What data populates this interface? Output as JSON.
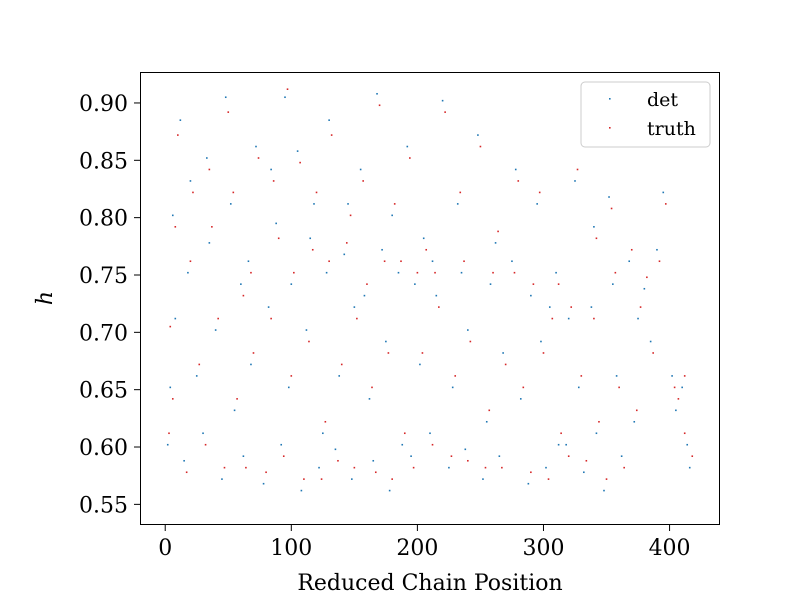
{
  "chart_data": {
    "type": "scatter",
    "title": "",
    "xlabel": "Reduced Chain Position",
    "ylabel": "h",
    "xlim": [
      -20,
      440
    ],
    "ylim": [
      0.532,
      0.927
    ],
    "xticks": [
      0,
      100,
      200,
      300,
      400
    ],
    "yticks": [
      0.55,
      0.6,
      0.65,
      0.7,
      0.75,
      0.8,
      0.85,
      0.9
    ],
    "xtick_labels": [
      "0",
      "100",
      "200",
      "300",
      "400"
    ],
    "ytick_labels": [
      "0.55",
      "0.60",
      "0.65",
      "0.70",
      "0.75",
      "0.80",
      "0.85",
      "0.90"
    ],
    "grid": false,
    "legend_position": "upper right",
    "series": [
      {
        "name": "det",
        "color": "#1f77b4",
        "points": [
          [
            12,
            0.885
          ],
          [
            20,
            0.832
          ],
          [
            35,
            0.778
          ],
          [
            48,
            0.905
          ],
          [
            60,
            0.742
          ],
          [
            72,
            0.862
          ],
          [
            88,
            0.795
          ],
          [
            95,
            0.905
          ],
          [
            105,
            0.858
          ],
          [
            118,
            0.812
          ],
          [
            130,
            0.885
          ],
          [
            142,
            0.768
          ],
          [
            155,
            0.842
          ],
          [
            168,
            0.908
          ],
          [
            180,
            0.802
          ],
          [
            192,
            0.862
          ],
          [
            205,
            0.782
          ],
          [
            220,
            0.902
          ],
          [
            232,
            0.812
          ],
          [
            248,
            0.872
          ],
          [
            262,
            0.778
          ],
          [
            278,
            0.842
          ],
          [
            295,
            0.812
          ],
          [
            310,
            0.752
          ],
          [
            325,
            0.832
          ],
          [
            340,
            0.792
          ],
          [
            352,
            0.818
          ],
          [
            368,
            0.762
          ],
          [
            380,
            0.738
          ],
          [
            395,
            0.822
          ],
          [
            8,
            0.712
          ],
          [
            25,
            0.662
          ],
          [
            40,
            0.702
          ],
          [
            55,
            0.632
          ],
          [
            68,
            0.672
          ],
          [
            82,
            0.722
          ],
          [
            98,
            0.652
          ],
          [
            112,
            0.702
          ],
          [
            125,
            0.612
          ],
          [
            138,
            0.662
          ],
          [
            150,
            0.722
          ],
          [
            162,
            0.642
          ],
          [
            175,
            0.692
          ],
          [
            188,
            0.602
          ],
          [
            202,
            0.672
          ],
          [
            215,
            0.732
          ],
          [
            228,
            0.652
          ],
          [
            240,
            0.702
          ],
          [
            255,
            0.622
          ],
          [
            268,
            0.682
          ],
          [
            282,
            0.642
          ],
          [
            298,
            0.692
          ],
          [
            312,
            0.602
          ],
          [
            328,
            0.652
          ],
          [
            342,
            0.612
          ],
          [
            358,
            0.662
          ],
          [
            372,
            0.622
          ],
          [
            385,
            0.692
          ],
          [
            405,
            0.632
          ],
          [
            414,
            0.602
          ],
          [
            15,
            0.588
          ],
          [
            30,
            0.612
          ],
          [
            45,
            0.572
          ],
          [
            62,
            0.592
          ],
          [
            78,
            0.568
          ],
          [
            92,
            0.602
          ],
          [
            108,
            0.562
          ],
          [
            122,
            0.582
          ],
          [
            135,
            0.598
          ],
          [
            148,
            0.572
          ],
          [
            165,
            0.588
          ],
          [
            178,
            0.562
          ],
          [
            195,
            0.592
          ],
          [
            210,
            0.612
          ],
          [
            225,
            0.582
          ],
          [
            238,
            0.598
          ],
          [
            252,
            0.572
          ],
          [
            265,
            0.592
          ],
          [
            288,
            0.568
          ],
          [
            302,
            0.582
          ],
          [
            318,
            0.602
          ],
          [
            332,
            0.578
          ],
          [
            348,
            0.562
          ],
          [
            362,
            0.592
          ],
          [
            6,
            0.802
          ],
          [
            18,
            0.752
          ],
          [
            33,
            0.852
          ],
          [
            52,
            0.812
          ],
          [
            66,
            0.762
          ],
          [
            84,
            0.842
          ],
          [
            100,
            0.742
          ],
          [
            115,
            0.782
          ],
          [
            128,
            0.752
          ],
          [
            145,
            0.812
          ],
          [
            158,
            0.732
          ],
          [
            172,
            0.772
          ],
          [
            185,
            0.752
          ],
          [
            198,
            0.742
          ],
          [
            212,
            0.762
          ],
          [
            235,
            0.752
          ],
          [
            258,
            0.742
          ],
          [
            275,
            0.762
          ],
          [
            290,
            0.732
          ],
          [
            305,
            0.722
          ],
          [
            320,
            0.712
          ],
          [
            338,
            0.722
          ],
          [
            355,
            0.742
          ],
          [
            375,
            0.712
          ],
          [
            390,
            0.772
          ],
          [
            402,
            0.662
          ],
          [
            410,
            0.652
          ],
          [
            416,
            0.582
          ],
          [
            2,
            0.602
          ],
          [
            4,
            0.652
          ]
        ]
      },
      {
        "name": "truth",
        "color": "#d62728",
        "points": [
          [
            10,
            0.872
          ],
          [
            22,
            0.822
          ],
          [
            37,
            0.792
          ],
          [
            50,
            0.892
          ],
          [
            62,
            0.732
          ],
          [
            74,
            0.852
          ],
          [
            90,
            0.782
          ],
          [
            97,
            0.912
          ],
          [
            107,
            0.848
          ],
          [
            120,
            0.822
          ],
          [
            132,
            0.872
          ],
          [
            144,
            0.778
          ],
          [
            157,
            0.832
          ],
          [
            170,
            0.898
          ],
          [
            182,
            0.812
          ],
          [
            194,
            0.852
          ],
          [
            207,
            0.772
          ],
          [
            222,
            0.892
          ],
          [
            234,
            0.822
          ],
          [
            250,
            0.862
          ],
          [
            264,
            0.788
          ],
          [
            280,
            0.832
          ],
          [
            297,
            0.822
          ],
          [
            312,
            0.742
          ],
          [
            327,
            0.842
          ],
          [
            342,
            0.782
          ],
          [
            354,
            0.808
          ],
          [
            370,
            0.772
          ],
          [
            382,
            0.748
          ],
          [
            397,
            0.812
          ],
          [
            4,
            0.705
          ],
          [
            27,
            0.672
          ],
          [
            42,
            0.712
          ],
          [
            57,
            0.642
          ],
          [
            70,
            0.682
          ],
          [
            84,
            0.712
          ],
          [
            100,
            0.662
          ],
          [
            114,
            0.692
          ],
          [
            127,
            0.622
          ],
          [
            140,
            0.672
          ],
          [
            152,
            0.712
          ],
          [
            164,
            0.652
          ],
          [
            177,
            0.682
          ],
          [
            190,
            0.612
          ],
          [
            204,
            0.682
          ],
          [
            217,
            0.722
          ],
          [
            230,
            0.662
          ],
          [
            242,
            0.692
          ],
          [
            257,
            0.632
          ],
          [
            270,
            0.672
          ],
          [
            284,
            0.652
          ],
          [
            300,
            0.682
          ],
          [
            314,
            0.612
          ],
          [
            330,
            0.662
          ],
          [
            344,
            0.622
          ],
          [
            360,
            0.652
          ],
          [
            374,
            0.632
          ],
          [
            387,
            0.682
          ],
          [
            407,
            0.642
          ],
          [
            412,
            0.612
          ],
          [
            17,
            0.578
          ],
          [
            32,
            0.602
          ],
          [
            47,
            0.582
          ],
          [
            64,
            0.582
          ],
          [
            80,
            0.578
          ],
          [
            94,
            0.592
          ],
          [
            110,
            0.572
          ],
          [
            124,
            0.572
          ],
          [
            137,
            0.588
          ],
          [
            150,
            0.582
          ],
          [
            167,
            0.578
          ],
          [
            180,
            0.572
          ],
          [
            197,
            0.582
          ],
          [
            212,
            0.602
          ],
          [
            227,
            0.592
          ],
          [
            240,
            0.588
          ],
          [
            254,
            0.582
          ],
          [
            267,
            0.582
          ],
          [
            290,
            0.578
          ],
          [
            304,
            0.572
          ],
          [
            320,
            0.592
          ],
          [
            334,
            0.588
          ],
          [
            350,
            0.572
          ],
          [
            364,
            0.582
          ],
          [
            8,
            0.792
          ],
          [
            20,
            0.762
          ],
          [
            35,
            0.842
          ],
          [
            54,
            0.822
          ],
          [
            68,
            0.752
          ],
          [
            86,
            0.832
          ],
          [
            102,
            0.752
          ],
          [
            117,
            0.772
          ],
          [
            130,
            0.762
          ],
          [
            147,
            0.802
          ],
          [
            160,
            0.742
          ],
          [
            174,
            0.762
          ],
          [
            187,
            0.762
          ],
          [
            200,
            0.752
          ],
          [
            214,
            0.752
          ],
          [
            237,
            0.762
          ],
          [
            260,
            0.752
          ],
          [
            277,
            0.752
          ],
          [
            292,
            0.742
          ],
          [
            307,
            0.712
          ],
          [
            322,
            0.722
          ],
          [
            340,
            0.712
          ],
          [
            357,
            0.752
          ],
          [
            377,
            0.722
          ],
          [
            392,
            0.762
          ],
          [
            404,
            0.652
          ],
          [
            412,
            0.662
          ],
          [
            418,
            0.592
          ],
          [
            3,
            0.612
          ],
          [
            6,
            0.642
          ]
        ]
      }
    ]
  }
}
